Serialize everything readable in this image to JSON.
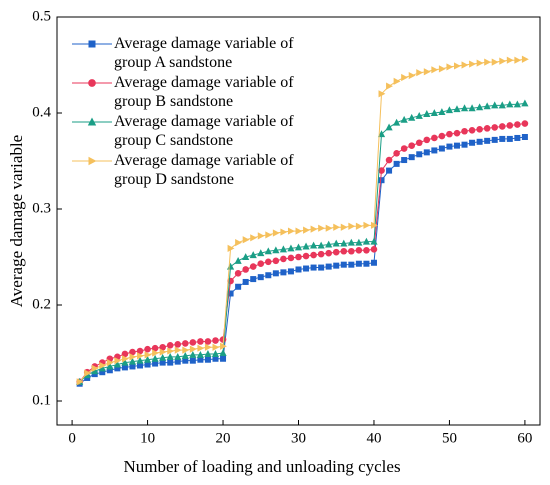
{
  "chart_data": {
    "type": "line",
    "x_label": "Number of loading and unloading cycles",
    "y_label": "Average damage variable",
    "x": [
      1,
      2,
      3,
      4,
      5,
      6,
      7,
      8,
      9,
      10,
      11,
      12,
      13,
      14,
      15,
      16,
      17,
      18,
      19,
      20,
      21,
      22,
      23,
      24,
      25,
      26,
      27,
      28,
      29,
      30,
      31,
      32,
      33,
      34,
      35,
      36,
      37,
      38,
      39,
      40,
      41,
      42,
      43,
      44,
      45,
      46,
      47,
      48,
      49,
      50,
      51,
      52,
      53,
      54,
      55,
      56,
      57,
      58,
      59,
      60
    ],
    "xlim": [
      -2,
      62
    ],
    "xticks": [
      0,
      10,
      20,
      30,
      40,
      50,
      60
    ],
    "ylim": [
      0.075,
      0.5
    ],
    "yticks": [
      0.1,
      0.2,
      0.3,
      0.4,
      0.5
    ],
    "legend": "upper left",
    "series": [
      {
        "name": "Average damage variable of group A sandstone",
        "color": "#1f62c8",
        "marker": "square",
        "values": [
          0.118,
          0.124,
          0.128,
          0.13,
          0.132,
          0.134,
          0.135,
          0.136,
          0.137,
          0.138,
          0.139,
          0.14,
          0.14,
          0.141,
          0.142,
          0.142,
          0.143,
          0.143,
          0.144,
          0.144,
          0.212,
          0.219,
          0.224,
          0.227,
          0.229,
          0.231,
          0.233,
          0.234,
          0.235,
          0.237,
          0.238,
          0.239,
          0.239,
          0.24,
          0.241,
          0.242,
          0.242,
          0.243,
          0.243,
          0.244,
          0.33,
          0.34,
          0.347,
          0.351,
          0.354,
          0.357,
          0.359,
          0.361,
          0.363,
          0.365,
          0.366,
          0.367,
          0.369,
          0.37,
          0.371,
          0.372,
          0.373,
          0.373,
          0.374,
          0.375
        ]
      },
      {
        "name": "Average damage variable of group B sandstone",
        "color": "#e8365a",
        "marker": "circle",
        "values": [
          0.12,
          0.13,
          0.136,
          0.14,
          0.144,
          0.146,
          0.149,
          0.151,
          0.152,
          0.154,
          0.155,
          0.156,
          0.158,
          0.159,
          0.16,
          0.161,
          0.162,
          0.162,
          0.163,
          0.164,
          0.225,
          0.233,
          0.237,
          0.24,
          0.243,
          0.245,
          0.246,
          0.248,
          0.249,
          0.25,
          0.251,
          0.252,
          0.253,
          0.254,
          0.255,
          0.256,
          0.256,
          0.257,
          0.257,
          0.258,
          0.34,
          0.351,
          0.358,
          0.363,
          0.366,
          0.369,
          0.372,
          0.374,
          0.376,
          0.378,
          0.379,
          0.381,
          0.382,
          0.383,
          0.384,
          0.385,
          0.386,
          0.387,
          0.388,
          0.389
        ]
      },
      {
        "name": "Average damage variable of group C sandstone",
        "color": "#1a9e86",
        "marker": "triangle-up",
        "values": [
          0.12,
          0.127,
          0.131,
          0.134,
          0.136,
          0.138,
          0.14,
          0.141,
          0.142,
          0.143,
          0.144,
          0.145,
          0.146,
          0.146,
          0.147,
          0.148,
          0.148,
          0.149,
          0.149,
          0.15,
          0.24,
          0.246,
          0.25,
          0.252,
          0.254,
          0.256,
          0.257,
          0.258,
          0.259,
          0.26,
          0.261,
          0.262,
          0.262,
          0.263,
          0.264,
          0.264,
          0.265,
          0.265,
          0.266,
          0.266,
          0.378,
          0.385,
          0.39,
          0.393,
          0.395,
          0.397,
          0.399,
          0.4,
          0.401,
          0.403,
          0.404,
          0.405,
          0.405,
          0.406,
          0.407,
          0.408,
          0.408,
          0.409,
          0.409,
          0.41
        ]
      },
      {
        "name": "Average damage variable of group D sandstone",
        "color": "#f5c05c",
        "marker": "triangle-right",
        "values": [
          0.12,
          0.129,
          0.134,
          0.137,
          0.14,
          0.142,
          0.144,
          0.146,
          0.147,
          0.148,
          0.15,
          0.151,
          0.152,
          0.153,
          0.153,
          0.154,
          0.155,
          0.156,
          0.156,
          0.157,
          0.259,
          0.265,
          0.268,
          0.27,
          0.272,
          0.273,
          0.275,
          0.276,
          0.277,
          0.277,
          0.278,
          0.279,
          0.28,
          0.28,
          0.281,
          0.281,
          0.282,
          0.282,
          0.283,
          0.283,
          0.42,
          0.428,
          0.433,
          0.437,
          0.439,
          0.442,
          0.443,
          0.445,
          0.446,
          0.448,
          0.449,
          0.45,
          0.451,
          0.452,
          0.453,
          0.453,
          0.454,
          0.455,
          0.455,
          0.456
        ]
      }
    ]
  }
}
